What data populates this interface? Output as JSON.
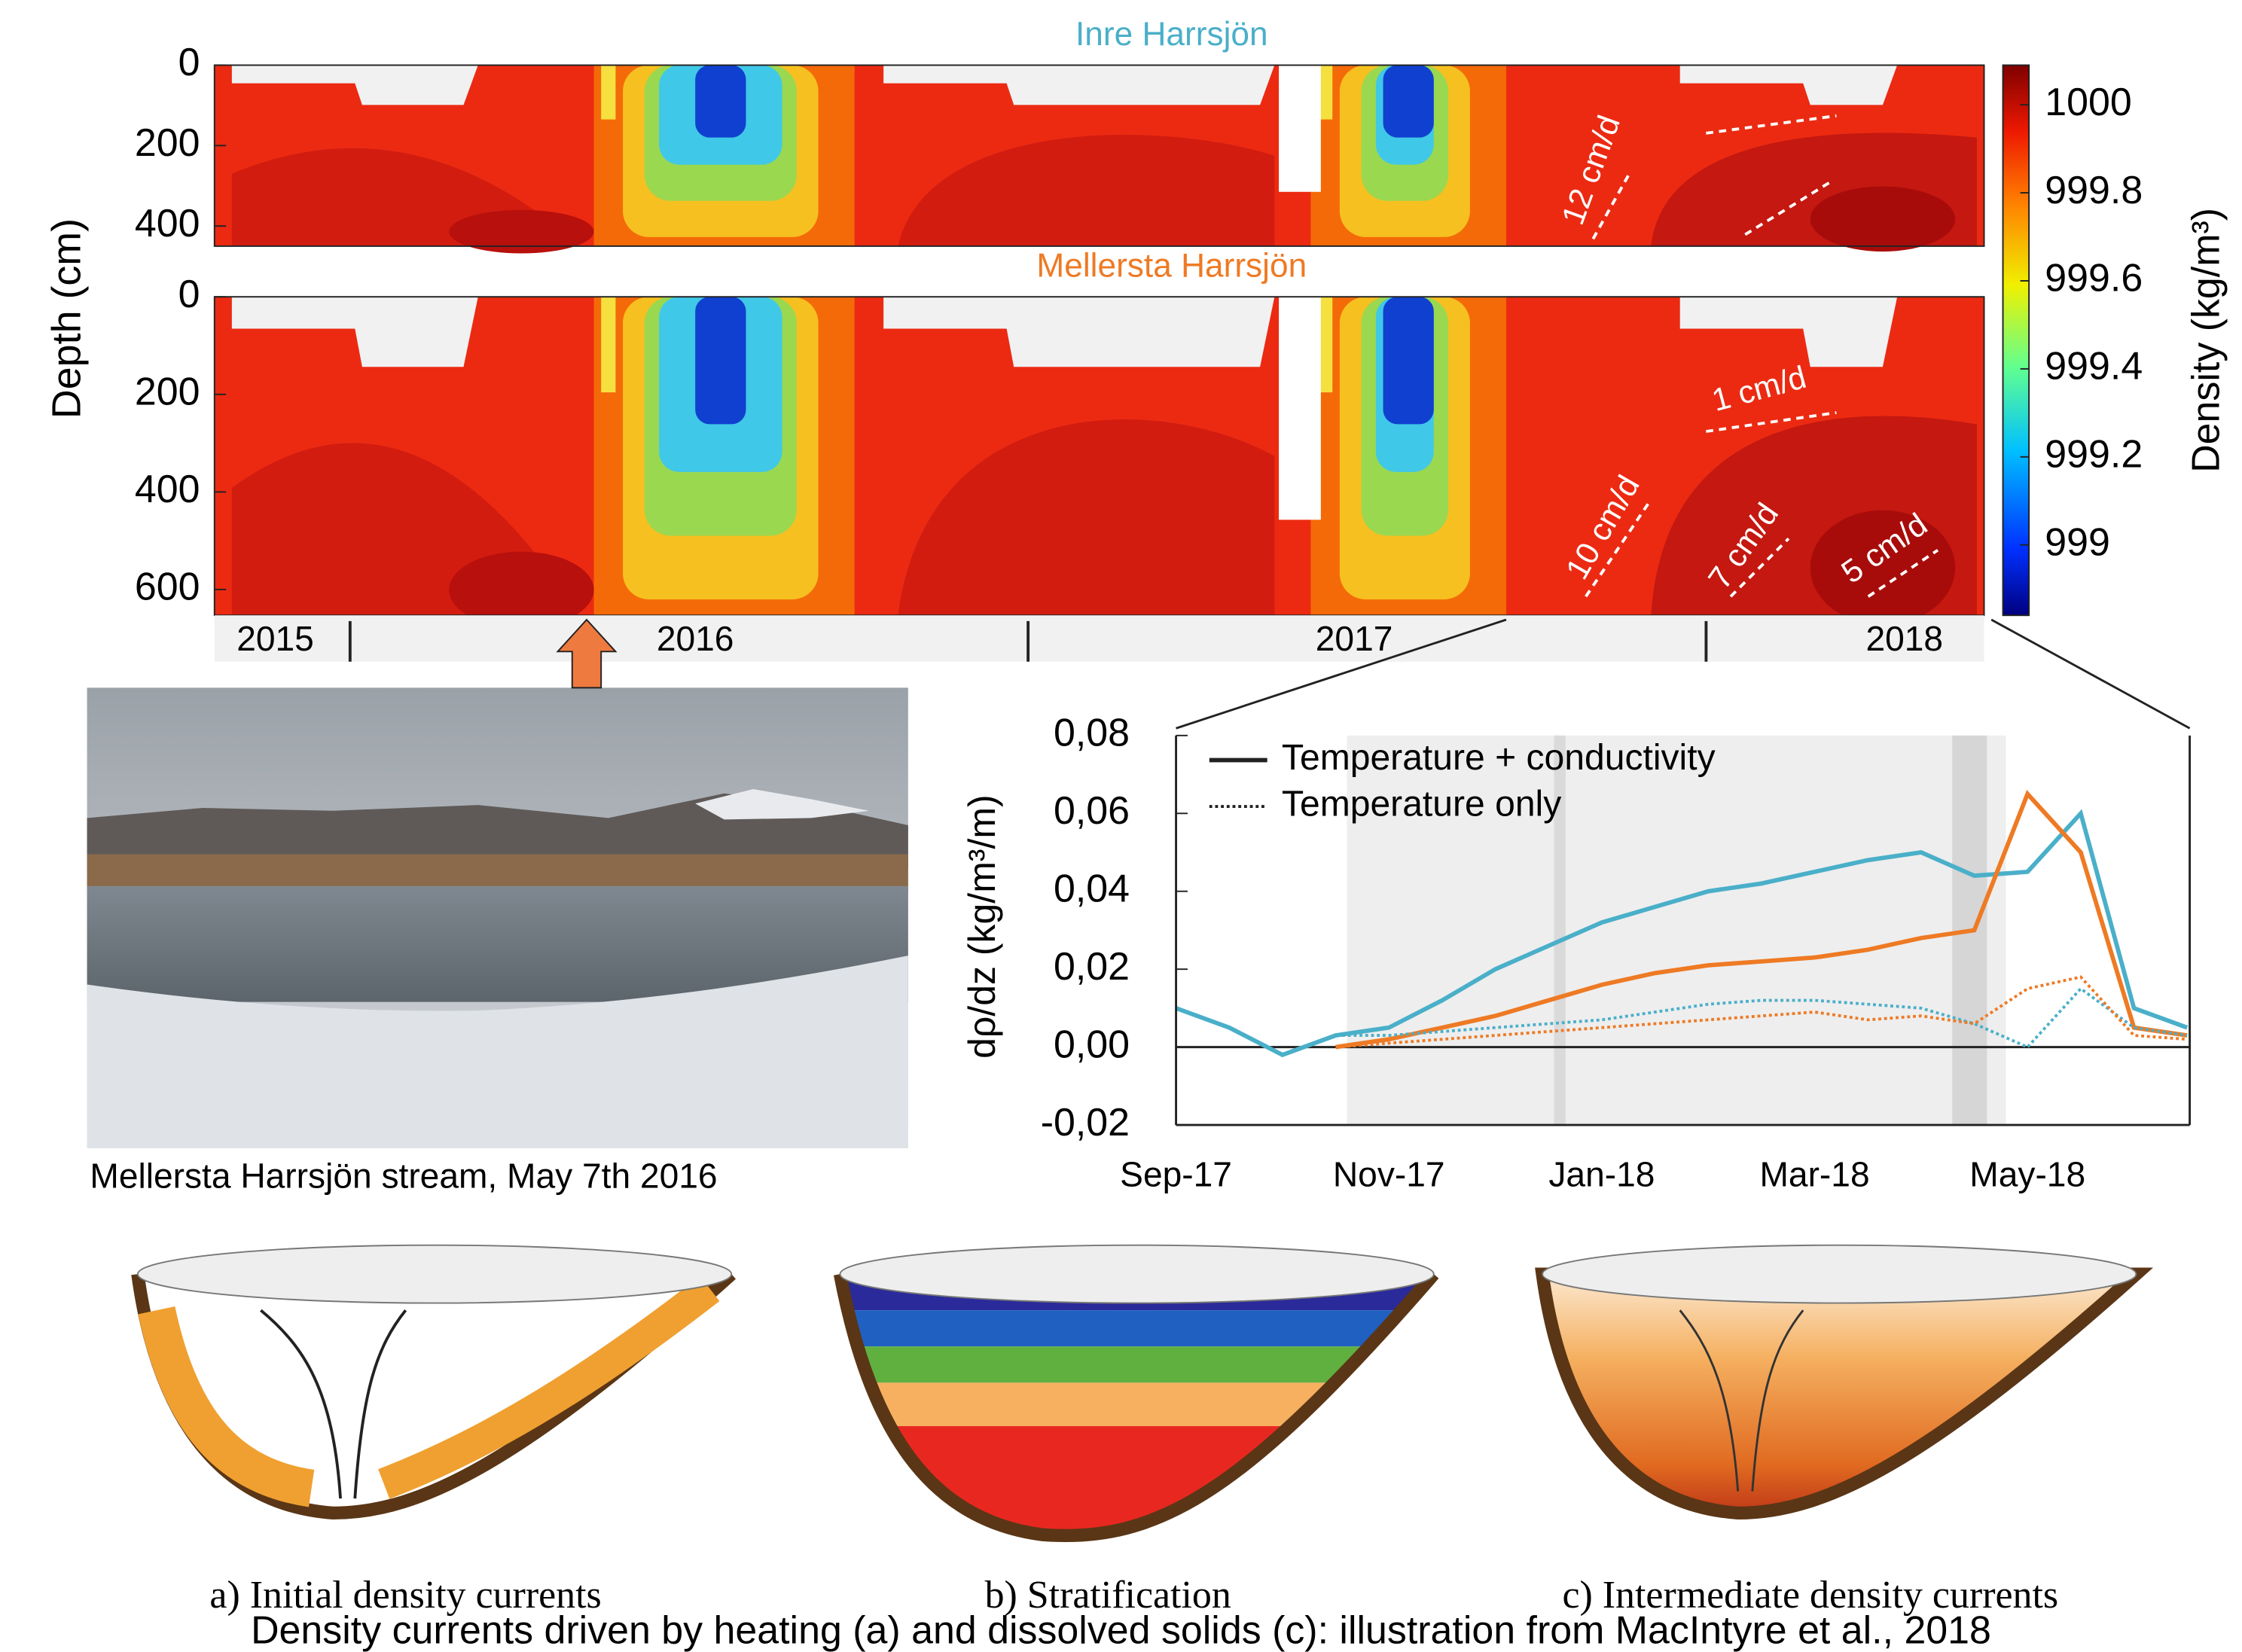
{
  "chart_data": [
    {
      "type": "contour",
      "title": "Inre Harrsjön",
      "title_color": "#4aafc9",
      "ylabel": "Depth (cm)",
      "ylim": [
        0,
        450
      ],
      "yticks": [
        0,
        200,
        400
      ],
      "annotations": [
        "12 cm/d"
      ]
    },
    {
      "type": "contour",
      "title": "Mellersta Harrsjön",
      "title_color": "#ee7a24",
      "ylim": [
        0,
        653
      ],
      "yticks": [
        0,
        200,
        400,
        600
      ],
      "xlim": [
        2015.8,
        2018.41
      ],
      "xticks": [
        2016,
        2017,
        2018
      ],
      "year_labels": [
        "2015",
        "2016",
        "2017",
        "2018"
      ],
      "annotations": [
        "1 cm/d",
        "10 cm/d",
        "7 cm/d",
        "5 cm/d"
      ]
    },
    {
      "type": "colorbar",
      "label": "Density (kg/m³)",
      "ylim": [
        998.84,
        1000.09
      ],
      "yticks": [
        999,
        999.2,
        999.4,
        999.6,
        999.8,
        1000
      ]
    },
    {
      "type": "line",
      "ylabel": "dρ/dz (kg/m³/m)",
      "ylim": [
        -0.02,
        0.08
      ],
      "yticks": [
        {
          "value": -0.02,
          "label": "-0,02"
        },
        {
          "value": 0,
          "label": "0,00"
        },
        {
          "value": 0.02,
          "label": "0,02"
        },
        {
          "value": 0.04,
          "label": "0,04"
        },
        {
          "value": 0.06,
          "label": "0,06"
        },
        {
          "value": 0.08,
          "label": "0,08"
        }
      ],
      "x": [
        "Sep-17",
        null,
        null,
        null,
        "Nov-17",
        null,
        null,
        null,
        "Jan-18",
        null,
        null,
        null,
        "Mar-18",
        null,
        null,
        null,
        "May-18",
        null,
        null,
        null
      ],
      "zero_line": true,
      "legend": [
        {
          "label": "Temperature + conductivity",
          "dash": "solid"
        },
        {
          "label": "Temperature only",
          "dash": "dotted"
        }
      ],
      "series": [
        {
          "color": "#4aafc9",
          "dash": "solid",
          "values": [
            0.01,
            0.005,
            -0.002,
            0.003,
            0.005,
            0.012,
            0.02,
            0.026,
            0.032,
            0.036,
            0.04,
            0.042,
            0.045,
            0.048,
            0.05,
            0.044,
            0.045,
            0.06,
            0.01,
            0.005
          ]
        },
        {
          "color": "#ee7a24",
          "dash": "solid",
          "values": [
            null,
            null,
            null,
            0.0,
            0.002,
            0.005,
            0.008,
            0.012,
            0.016,
            0.019,
            0.021,
            0.022,
            0.023,
            0.025,
            0.028,
            0.03,
            0.065,
            0.05,
            0.005,
            0.003
          ]
        },
        {
          "color": "#4aafc9",
          "dash": "dotted",
          "values": [
            0.01,
            0.005,
            -0.002,
            0.003,
            0.003,
            0.004,
            0.005,
            0.006,
            0.007,
            0.009,
            0.011,
            0.012,
            0.012,
            0.011,
            0.01,
            0.006,
            0.0,
            0.015,
            0.005,
            0.003
          ]
        },
        {
          "color": "#ee7a24",
          "dash": "dotted",
          "values": [
            null,
            null,
            null,
            0.0,
            0.001,
            0.002,
            0.003,
            0.004,
            0.005,
            0.006,
            0.007,
            0.008,
            0.009,
            0.007,
            0.008,
            0.006,
            0.015,
            0.018,
            0.003,
            0.002
          ]
        }
      ]
    }
  ],
  "photo_caption": "Mellersta Harrsjön stream, May 7th 2016",
  "illustrations": [
    {
      "label": "a) Initial density currents"
    },
    {
      "label": "b) Stratification"
    },
    {
      "label": "c) Intermediate density currents"
    }
  ],
  "caption": "Density currents driven by heating (a) and dissolved solids (c): illustration from MacIntyre et al., 2018"
}
